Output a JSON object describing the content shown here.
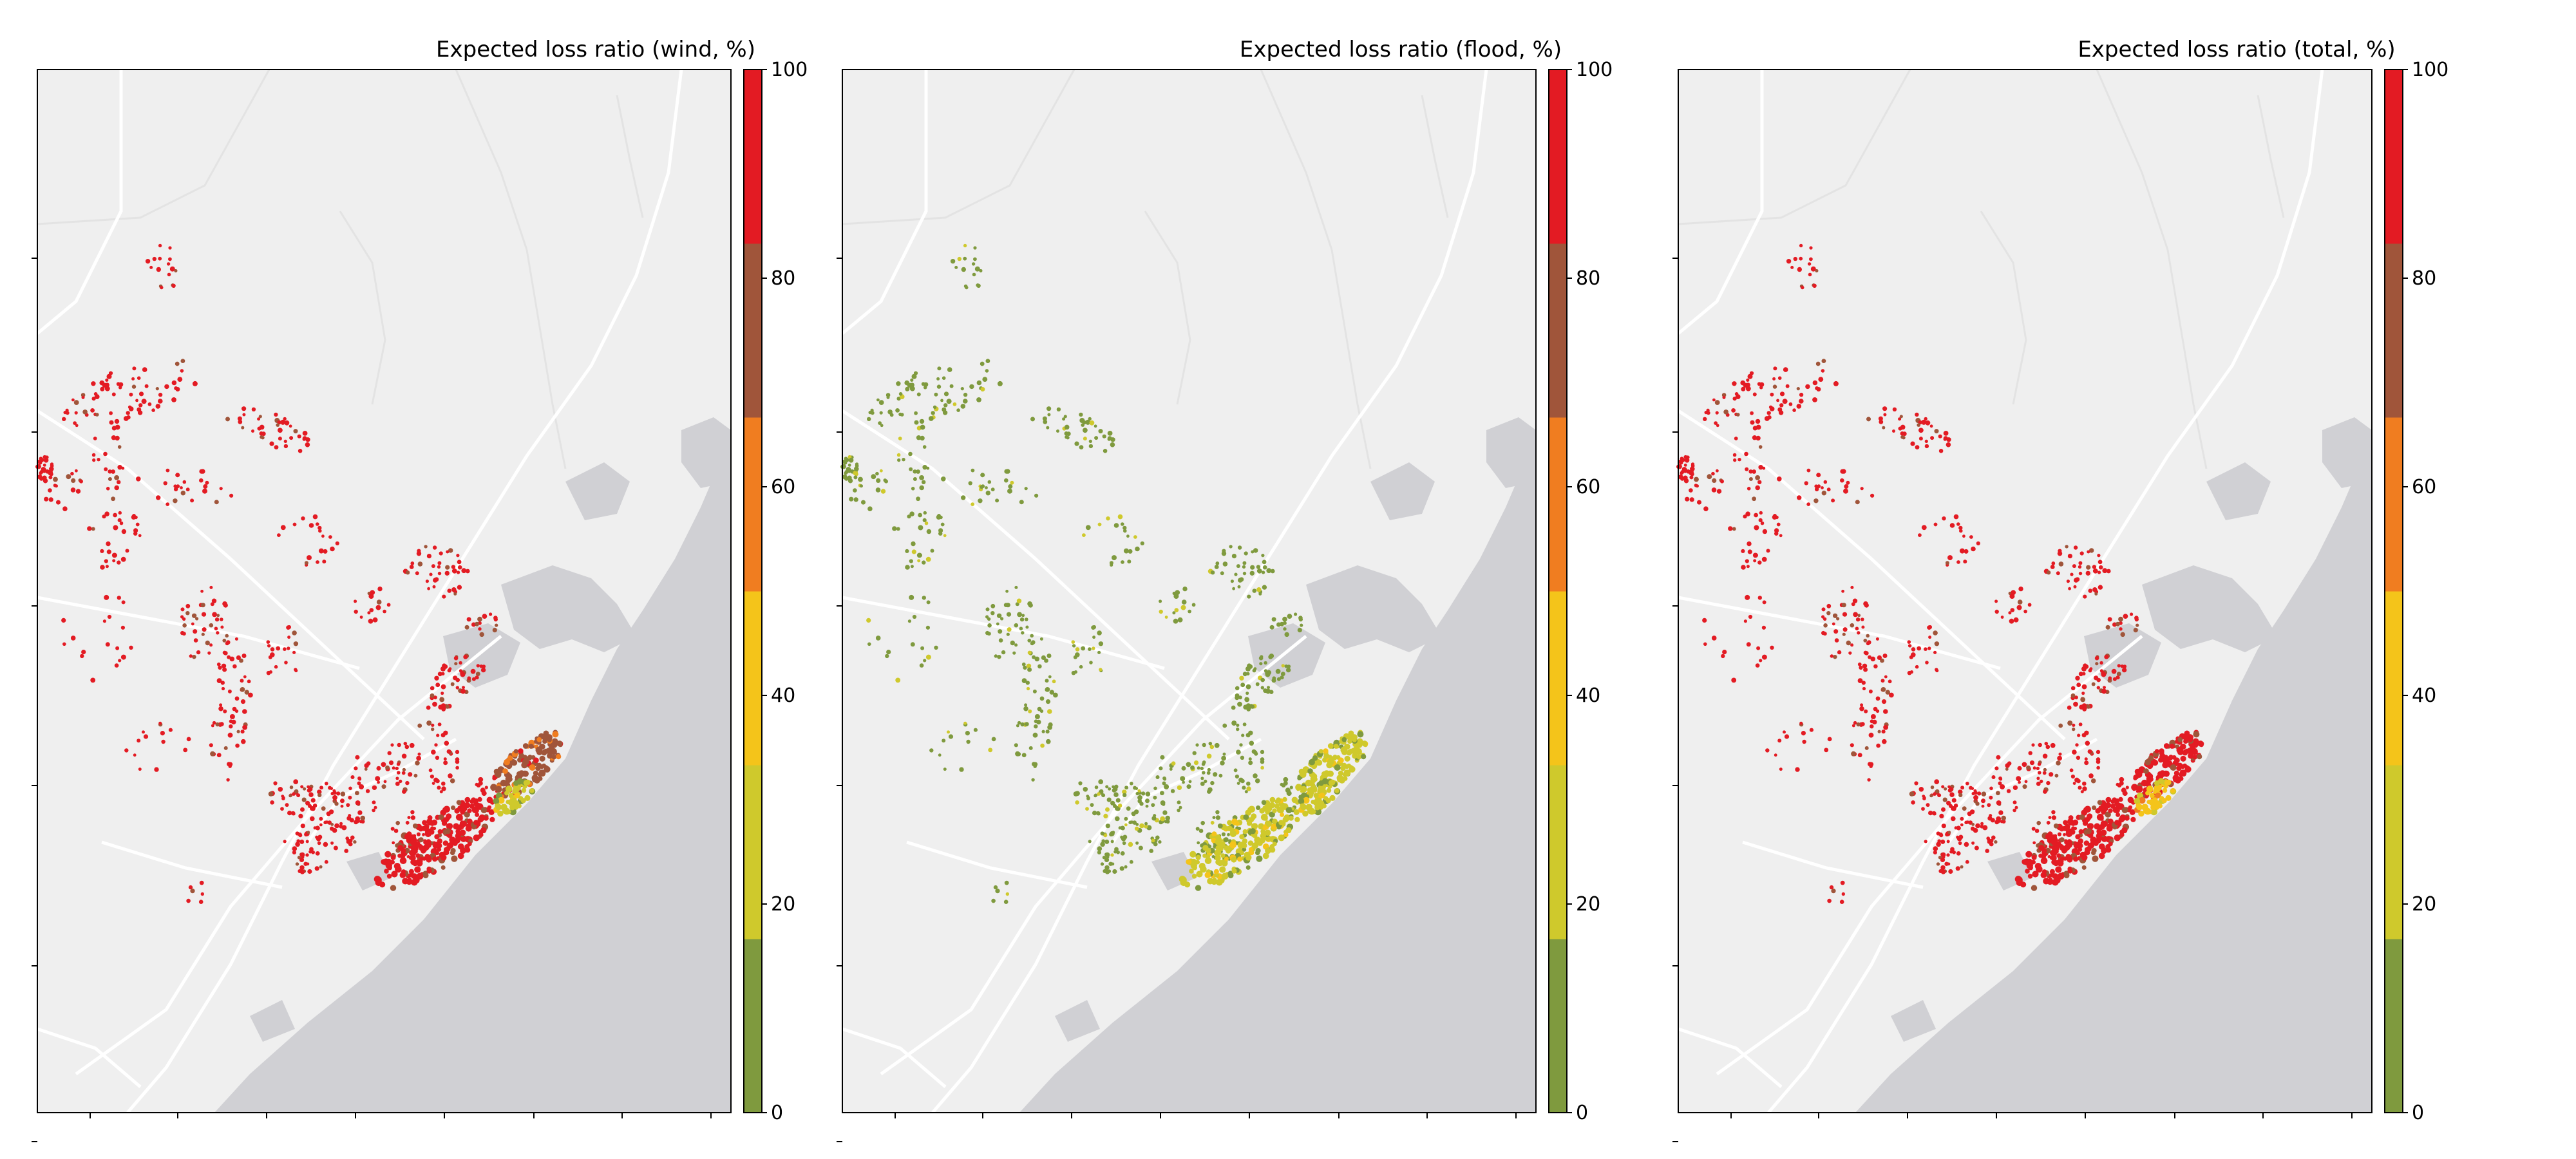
{
  "figure": {
    "type": "map",
    "panel_count": 3,
    "background": "#ffffff"
  },
  "basemap": {
    "land_color": "#efefef",
    "water_color": "#d0d0d4",
    "road_color": "#ffffff",
    "border_color": "#000000"
  },
  "colorbar": {
    "bins": [
      {
        "range": [
          0,
          16.67
        ],
        "color": "#7f9a3e"
      },
      {
        "range": [
          16.67,
          33.33
        ],
        "color": "#cfc92c"
      },
      {
        "range": [
          33.33,
          50
        ],
        "color": "#f4c41a"
      },
      {
        "range": [
          50,
          66.67
        ],
        "color": "#f07d20"
      },
      {
        "range": [
          66.67,
          83.33
        ],
        "color": "#a0553a"
      },
      {
        "range": [
          83.33,
          100
        ],
        "color": "#e31b23"
      }
    ],
    "ticks": [
      "0",
      "20",
      "40",
      "60",
      "80",
      "100"
    ]
  },
  "panels": [
    {
      "id": "wind",
      "title": "Expected loss ratio (wind, %)",
      "levels": {
        "inland": 5,
        "coast_sw": 5,
        "coast_ne": 4,
        "coast_mid": 1
      }
    },
    {
      "id": "flood",
      "title": "Expected loss ratio (flood, %)",
      "levels": {
        "inland": 0,
        "coast_sw": 1,
        "coast_ne": 1,
        "coast_mid": 1
      }
    },
    {
      "id": "total",
      "title": "Expected loss ratio (total, %)",
      "levels": {
        "inland": 5,
        "coast_sw": 5,
        "coast_ne": 5,
        "coast_mid": 2
      }
    }
  ]
}
